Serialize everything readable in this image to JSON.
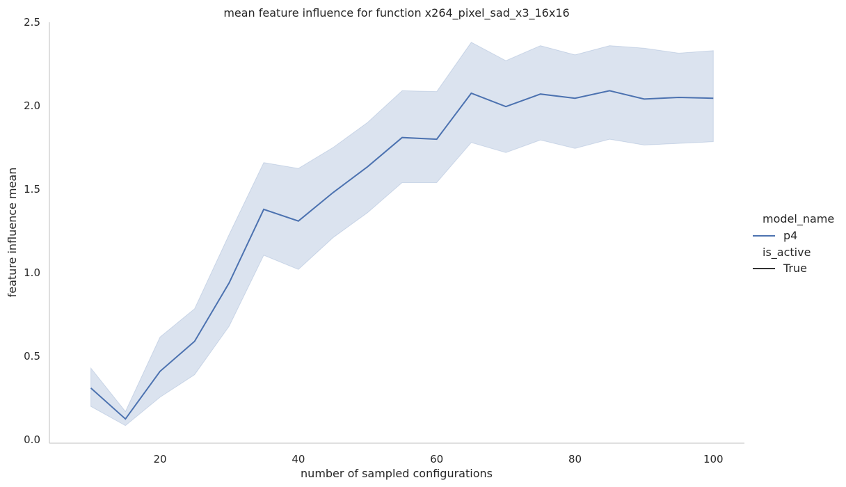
{
  "chart_data": {
    "type": "line",
    "title": "mean feature influence for function x264_pixel_sad_x3_16x16",
    "xlabel": "number of sampled configurations",
    "ylabel": "feature influence mean",
    "xlim": [
      4,
      104.5
    ],
    "ylim": [
      -0.02,
      2.5
    ],
    "xticks": [
      20,
      40,
      60,
      80,
      100
    ],
    "yticks": [
      0.0,
      0.5,
      1.0,
      1.5,
      2.0,
      2.5
    ],
    "ytick_labels": [
      "0.0",
      "0.5",
      "1.0",
      "1.5",
      "2.0",
      "2.5"
    ],
    "grid": false,
    "legend": {
      "placement": "right",
      "groups": [
        {
          "title": "model_name",
          "entries": [
            {
              "label": "p4",
              "color": "#4c72b0"
            }
          ]
        },
        {
          "title": "is_active",
          "entries": [
            {
              "label": "True",
              "color": "#333333"
            }
          ]
        }
      ]
    },
    "series": [
      {
        "name": "p4",
        "color": "#4c72b0",
        "x": [
          10,
          15,
          20,
          25,
          30,
          35,
          40,
          45,
          50,
          55,
          60,
          65,
          70,
          75,
          80,
          85,
          90,
          95,
          100
        ],
        "y": [
          0.31,
          0.125,
          0.41,
          0.59,
          0.94,
          1.38,
          1.31,
          1.48,
          1.635,
          1.81,
          1.8,
          2.075,
          1.995,
          2.07,
          2.045,
          2.09,
          2.04,
          2.05,
          2.045
        ],
        "ci_low": [
          0.2,
          0.085,
          0.255,
          0.39,
          0.68,
          1.105,
          1.02,
          1.21,
          1.36,
          1.54,
          1.54,
          1.78,
          1.72,
          1.795,
          1.745,
          1.8,
          1.765,
          1.775,
          1.785
        ],
        "ci_high": [
          0.43,
          0.17,
          0.615,
          0.785,
          1.23,
          1.66,
          1.625,
          1.75,
          1.9,
          2.09,
          2.085,
          2.38,
          2.27,
          2.36,
          2.305,
          2.36,
          2.345,
          2.315,
          2.33
        ]
      }
    ]
  }
}
